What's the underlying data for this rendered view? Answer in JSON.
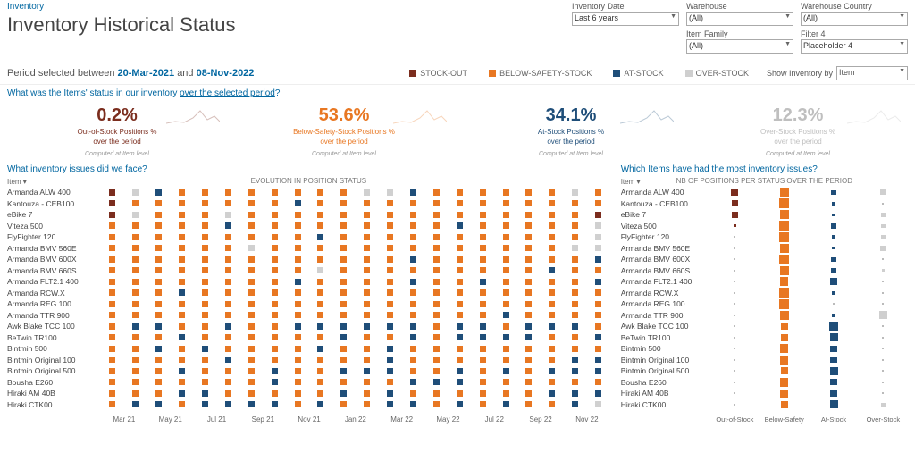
{
  "breadcrumb": "Inventory",
  "title": "Inventory Historical Status",
  "filters": [
    {
      "label": "Inventory Date",
      "value": "Last 6 years"
    },
    {
      "label": "Warehouse",
      "value": "(All)"
    },
    {
      "label": "Warehouse Country",
      "value": "(All)"
    },
    {
      "label": "Item Family",
      "value": "(All)"
    },
    {
      "label": "Filter 4",
      "value": "Placeholder 4"
    }
  ],
  "period": {
    "prefix": "Period selected between",
    "from": "20-Mar-2021",
    "and": "and",
    "to": "08-Nov-2022"
  },
  "legend": [
    {
      "label": "STOCK-OUT",
      "color": "#7b2d1e"
    },
    {
      "label": "BELOW-SAFETY-STOCK",
      "color": "#e87722"
    },
    {
      "label": "AT-STOCK",
      "color": "#1f4e79"
    },
    {
      "label": "OVER-STOCK",
      "color": "#cfcfcf"
    }
  ],
  "show_by": {
    "label": "Show Inventory by",
    "value": "Item"
  },
  "question1": {
    "prefix": "What was the Items' status in our inventory ",
    "underline": "over the selected period",
    "suffix": "?"
  },
  "kpis": [
    {
      "value": "0.2%",
      "label": "Out-of-Stock Positions %",
      "sub": "over the period",
      "computed": "Computed at Item level",
      "color": "#7b2d1e"
    },
    {
      "value": "53.6%",
      "label": "Below-Safety-Stock Positions %",
      "sub": "over the period",
      "computed": "Computed at Item level",
      "color": "#e87722"
    },
    {
      "value": "34.1%",
      "label": "At-Stock Positions %",
      "sub": "over the period",
      "computed": "Computed at Item level",
      "color": "#1f4e79"
    },
    {
      "value": "12.3%",
      "label": "Over-Stock Positions %",
      "sub": "over the period",
      "computed": "Computed at Item level",
      "color": "#bfbfbf"
    }
  ],
  "left": {
    "title": "What inventory issues did we face?",
    "axis_label": "Item ▾",
    "chart_header": "EVOLUTION IN POSITION STATUS",
    "colors": {
      "r": "#7b2d1e",
      "o": "#e87722",
      "b": "#1f4e79",
      "g": "#d0d0d0"
    },
    "items": [
      "Armanda ALW 400",
      "Kantouza - CEB100",
      "eBike 7",
      "Viteza 500",
      "FlyFighter 120",
      "Armanda BMV 560E",
      "Armanda BMV 600X",
      "Armanda BMV 660S",
      "Armanda FLT2.1 400",
      "Armanda RCW.X",
      "Armanda REG 100",
      "Armanda TTR 900",
      "Awk Blake TCC 100",
      "BeTwin TR100",
      "Bintmin 500",
      "Bintmin Original 100",
      "Bintmin Original 500",
      "Bousha E260",
      "Hiraki AM 40B",
      "Hiraki CTK00"
    ],
    "x_ticks": [
      "Mar 21",
      "May 21",
      "Jul 21",
      "Sep 21",
      "Nov 21",
      "Jan 22",
      "Mar 22",
      "May 22",
      "Jul 22",
      "Sep 22",
      "Nov 22"
    ],
    "grid": [
      "rgbooooooooggboooooogo",
      "rooooooobooooooooooooo",
      "rgooogooooooooooooooor",
      "ooooobooooooooobooooog",
      "ooooooooobooooooooooog",
      "oooooogooooooooooooogg",
      "ooooooooooooobooooooob",
      "ooooooooogoooooooooboo",
      "ooooooooboooobooboooob",
      "oooboooooooooooooooooo",
      "oooooooooooooooooooooo",
      "oooooooooooooooooboooo",
      "obbooboobbbbbbobbobbbo",
      "ooobooooooboobobbbboob",
      "oobobooooboobooooooooo",
      "oooooboooooobooooooobb",
      "oooboooboobbboobobobbb",
      "ooooooobooooobbboooooo",
      "ooobboooooboboooooobbb",
      "obbobbbboboobboboboobg"
    ]
  },
  "right": {
    "title": "Which Items have had the most inventory issues?",
    "chart_header": "NB OF POSITIONS PER STATUS OVER THE PERIOD",
    "axis_label": "Item ▾",
    "x_ticks": [
      "Out-of-Stock",
      "Below-Safety",
      "At-Stock",
      "Over-Stock"
    ],
    "colors": {
      "out": "#7b2d1e",
      "below": "#e87722",
      "at": "#1f4e79",
      "over": "#cfcfcf"
    },
    "rows": [
      {
        "out": 6,
        "below": 10,
        "at": 3,
        "over": 4
      },
      {
        "out": 5,
        "below": 11,
        "at": 2,
        "over": 0
      },
      {
        "out": 5,
        "below": 10,
        "at": 1,
        "over": 3
      },
      {
        "out": 1,
        "below": 11,
        "at": 3,
        "over": 2
      },
      {
        "out": 0,
        "below": 11,
        "at": 2,
        "over": 2
      },
      {
        "out": 0,
        "below": 10,
        "at": 1,
        "over": 4
      },
      {
        "out": 0,
        "below": 11,
        "at": 3,
        "over": 0
      },
      {
        "out": 0,
        "below": 10,
        "at": 3,
        "over": 1
      },
      {
        "out": 0,
        "below": 9,
        "at": 6,
        "over": 0
      },
      {
        "out": 0,
        "below": 11,
        "at": 2,
        "over": 0
      },
      {
        "out": 0,
        "below": 11,
        "at": 0,
        "over": 0
      },
      {
        "out": 0,
        "below": 10,
        "at": 2,
        "over": 8
      },
      {
        "out": 0,
        "below": 6,
        "at": 9,
        "over": 0
      },
      {
        "out": 0,
        "below": 7,
        "at": 8,
        "over": 0
      },
      {
        "out": 0,
        "below": 9,
        "at": 5,
        "over": 0
      },
      {
        "out": 0,
        "below": 9,
        "at": 5,
        "over": 0
      },
      {
        "out": 0,
        "below": 7,
        "at": 8,
        "over": 0
      },
      {
        "out": 0,
        "below": 9,
        "at": 5,
        "over": 0
      },
      {
        "out": 0,
        "below": 8,
        "at": 7,
        "over": 0
      },
      {
        "out": 0,
        "below": 7,
        "at": 8,
        "over": 2
      }
    ]
  }
}
